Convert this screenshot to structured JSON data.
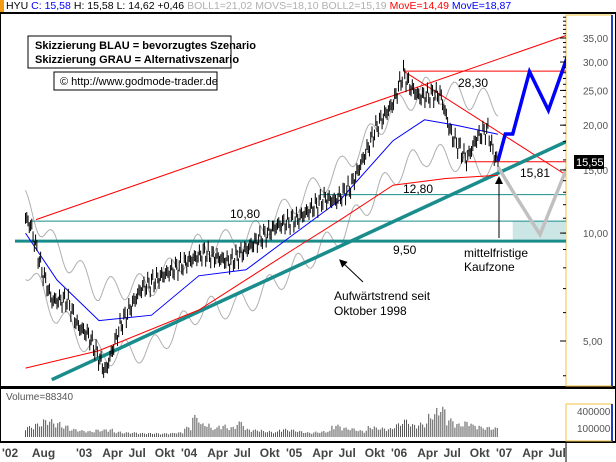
{
  "header": {
    "symbol": "HYU",
    "close": "C: 15,58",
    "high": "H: 15,58",
    "low": "L: 14,62",
    "change": "+0,46",
    "boll1": "BOLL1=21,02",
    "movs": "MOVS=18,10",
    "boll2": "BOLL2=15,19",
    "move_red": "MovE=14,49",
    "move_blue": "MovE=18,87"
  },
  "legend": {
    "line1": "Skizzierung BLAU = bevorzugtes Szenario",
    "line2": "Skizzierung GRAU = Alternativszenario",
    "copyright": "© http://www.godmode-trader.de"
  },
  "annotations": {
    "level_2830": "28,30",
    "level_1581": "15,81",
    "level_1280": "12,80",
    "level_1080": "10,80",
    "level_950": "9,50",
    "buy_zone_1": "mittelfristige",
    "buy_zone_2": "Kaufzone",
    "trend_1": "Aufwärtstrend seit",
    "trend_2": "Oktober 1998",
    "last_price": "15,55"
  },
  "volume": {
    "label": "Volume=88340",
    "ticks": [
      "400000",
      "100000"
    ]
  },
  "colors": {
    "price": "#000000",
    "ma_blue": "#0000ff",
    "ma_red": "#ff0000",
    "bollinger": "#b0b0b0",
    "trend": "#1a8c8c",
    "scenario_blue": "#0000ff",
    "scenario_grey": "#c0c0c0",
    "buy_zone": "#cce6e6"
  },
  "chart_data": {
    "type": "line",
    "yscale": "log",
    "ylim": [
      4,
      40
    ],
    "y_ticks": [
      "35,00",
      "30,00",
      "25,00",
      "20,00",
      "15,00",
      "10,00",
      "5,00"
    ],
    "y_tick_values": [
      35,
      30,
      25,
      20,
      15,
      10,
      5
    ],
    "x_ticks": [
      "'02",
      "Aug",
      "'03",
      "Apr",
      "Jul",
      "Okt",
      "'04",
      "Apr",
      "Jul",
      "Okt",
      "'05",
      "Apr",
      "Jul",
      "Okt",
      "'06",
      "Apr",
      "Jul",
      "Okt",
      "'07",
      "Apr",
      "Jul"
    ],
    "x_tick_dates": [
      2002.0,
      2002.58,
      2003.0,
      2003.25,
      2003.5,
      2003.75,
      2004.0,
      2004.25,
      2004.5,
      2004.75,
      2005.0,
      2005.25,
      2005.5,
      2005.75,
      2006.0,
      2006.25,
      2006.5,
      2006.75,
      2007.0,
      2007.25,
      2007.5
    ],
    "price": [
      [
        2002.5,
        11
      ],
      [
        2002.55,
        10.5
      ],
      [
        2002.65,
        8
      ],
      [
        2002.75,
        6.5
      ],
      [
        2002.9,
        6.5
      ],
      [
        2003.0,
        5.5
      ],
      [
        2003.1,
        5.2
      ],
      [
        2003.26,
        4.1
      ],
      [
        2003.4,
        5.5
      ],
      [
        2003.6,
        7
      ],
      [
        2003.8,
        7.6
      ],
      [
        2004.0,
        8.2
      ],
      [
        2004.2,
        8.8
      ],
      [
        2004.45,
        8.3
      ],
      [
        2004.7,
        9.5
      ],
      [
        2004.9,
        10.5
      ],
      [
        2005.1,
        11
      ],
      [
        2005.35,
        12.5
      ],
      [
        2005.45,
        12.3
      ],
      [
        2005.6,
        13.5
      ],
      [
        2005.75,
        17
      ],
      [
        2005.85,
        20
      ],
      [
        2006.0,
        23
      ],
      [
        2006.1,
        28
      ],
      [
        2006.15,
        26
      ],
      [
        2006.25,
        24
      ],
      [
        2006.45,
        24.5
      ],
      [
        2006.55,
        19
      ],
      [
        2006.7,
        16
      ],
      [
        2006.8,
        18.5
      ],
      [
        2006.9,
        19.5
      ],
      [
        2006.95,
        17
      ],
      [
        2007.0,
        15.58
      ]
    ],
    "ma_blue": [
      [
        2002.5,
        10
      ],
      [
        2002.8,
        7.4
      ],
      [
        2003.2,
        5.7
      ],
      [
        2003.7,
        5.9
      ],
      [
        2004.15,
        7.6
      ],
      [
        2004.6,
        7.9
      ],
      [
        2005.05,
        9.9
      ],
      [
        2005.5,
        12.4
      ],
      [
        2006.0,
        18.1
      ],
      [
        2006.3,
        20.7
      ],
      [
        2006.6,
        20
      ],
      [
        2007.0,
        18.87
      ]
    ],
    "ma_red": [
      [
        2002.5,
        4.2
      ],
      [
        2003.2,
        4.7
      ],
      [
        2004.15,
        6.1
      ],
      [
        2005.05,
        9
      ],
      [
        2005.5,
        10.9
      ],
      [
        2006.0,
        13.6
      ],
      [
        2006.5,
        14.2
      ],
      [
        2007.0,
        14.49
      ]
    ],
    "horizontal_levels": [
      28.3,
      15.81,
      12.8,
      10.8,
      9.5
    ],
    "uptrend_line": [
      [
        2002.75,
        3.9
      ],
      [
        2007.65,
        18
      ]
    ],
    "upper_channel": [
      [
        2002.6,
        10.9
      ],
      [
        2007.7,
        36
      ]
    ],
    "downtrend_line": [
      [
        2006.1,
        28.3
      ],
      [
        2007.7,
        14.2
      ]
    ],
    "buy_zone": [
      9.5,
      10.8
    ],
    "scenario_blue": [
      [
        2007.0,
        15.9
      ],
      [
        2007.07,
        18.9
      ],
      [
        2007.14,
        18.9
      ],
      [
        2007.3,
        28.2
      ],
      [
        2007.48,
        22
      ],
      [
        2007.78,
        39
      ]
    ],
    "scenario_grey": [
      [
        2007.0,
        15.3
      ],
      [
        2007.16,
        12.8
      ],
      [
        2007.4,
        9.9
      ],
      [
        2007.76,
        18.1
      ]
    ],
    "volume_monthly": [
      160,
      200,
      260,
      220,
      170,
      120,
      100,
      90,
      110,
      120,
      80,
      70,
      70,
      60,
      60,
      55,
      60,
      70,
      150,
      320,
      200,
      140,
      180,
      150,
      230,
      120,
      110,
      90,
      80,
      120,
      110,
      90,
      70,
      80,
      90,
      180,
      140,
      130,
      100,
      160,
      140,
      130,
      200,
      260,
      190,
      210,
      340,
      440,
      270,
      200,
      230,
      180,
      150,
      140,
      150,
      170
    ]
  }
}
